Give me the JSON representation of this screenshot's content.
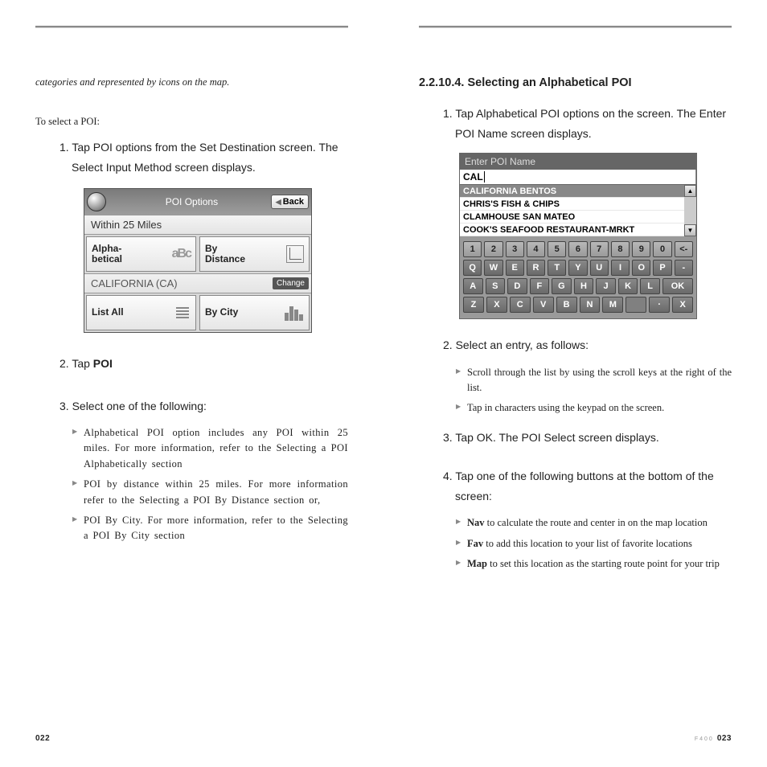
{
  "left": {
    "intro": "categories and represented by icons on the map.",
    "lead": "To select a POI:",
    "step1": "1. Tap POI options from the Set Destination screen. The Select Input Method screen displays.",
    "step2_prefix": "2. Tap ",
    "step2_bold": "POI",
    "step3": "3. Select one of the following:",
    "bullets": [
      "Alphabetical POI option includes any POI within 25 miles. For more information, refer to the Selecting a POI Alphabetically section",
      "POI by distance within 25 miles. For more information refer to the Selecting a POI By Distance section or,",
      "POI By City. For more information, refer to the Selecting a POI By City section"
    ],
    "page_num": "022"
  },
  "device1": {
    "title": "POI Options",
    "back": "Back",
    "row1": "Within 25 Miles",
    "btn_alpha_l1": "Alpha-",
    "btn_alpha_l2": "betical",
    "abc": "aBc",
    "btn_dist_l1": "By",
    "btn_dist_l2": "Distance",
    "state_row": "CALIFORNIA (CA)",
    "change": "Change",
    "btn_list": "List All",
    "btn_city": "By City"
  },
  "right": {
    "heading": "2.2.10.4.   Selecting an Alphabetical POI",
    "step1": "1. Tap Alphabetical POI options on the screen. The Enter POI Name screen displays.",
    "step2": "2. Select an entry, as follows:",
    "bullets2": [
      "Scroll through the list by using the scroll keys at the right of the list.",
      "Tap in characters using the keypad on the screen."
    ],
    "step3": "3. Tap OK. The POI Select screen displays.",
    "step4": "4. Tap one of the following buttons at the bottom of the screen:",
    "bullets4": [
      {
        "b": "Nav",
        "t": " to calculate the route and center in on the map location"
      },
      {
        "b": "Fav",
        "t": " to add this location to your list of favorite locations"
      },
      {
        "b": "Map",
        "t": " to set this location as the starting route point for your trip"
      }
    ],
    "model": "F400",
    "page_num": "023"
  },
  "device2": {
    "title": "Enter POI Name",
    "input": "CAL",
    "rows": [
      "CALIFORNIA BENTOS",
      "CHRIS'S FISH & CHIPS",
      "CLAMHOUSE SAN MATEO",
      "COOK'S SEAFOOD RESTAURANT-MRKT"
    ],
    "num_row": [
      "1",
      "2",
      "3",
      "4",
      "5",
      "6",
      "7",
      "8",
      "9",
      "0",
      "<-"
    ],
    "row_q": [
      "Q",
      "W",
      "E",
      "R",
      "T",
      "Y",
      "U",
      "I",
      "O",
      "P",
      "-"
    ],
    "row_a": [
      "A",
      "S",
      "D",
      "F",
      "G",
      "H",
      "J",
      "K",
      "L",
      "OK"
    ],
    "row_z": [
      "Z",
      "X",
      "C",
      "V",
      "B",
      "N",
      "M",
      "",
      "·",
      "X"
    ]
  }
}
